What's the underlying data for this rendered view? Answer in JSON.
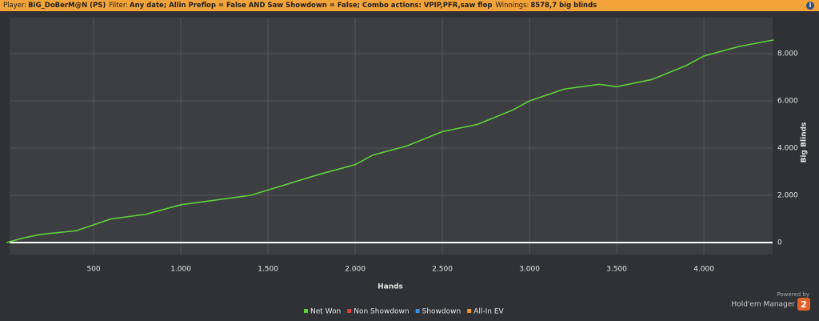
{
  "header": [
    {
      "label": "Player:",
      "value": "BiG_DoBerM@N (PS)"
    },
    {
      "label": "Filter:",
      "value": "Any date; Allin Preflop = False AND Saw Showdown = False; Combo actions: VPIP,PFR,saw flop"
    },
    {
      "label": "Winnings:",
      "value": "8578,7 big blinds"
    }
  ],
  "chart_data": {
    "type": "line",
    "x_label": "Hands",
    "y_label": "Big Blinds",
    "x": [
      0,
      100,
      200,
      400,
      600,
      800,
      1000,
      1200,
      1400,
      1600,
      1800,
      2000,
      2100,
      2300,
      2500,
      2700,
      2900,
      3000,
      3200,
      3400,
      3500,
      3700,
      3900,
      4000,
      4200,
      4400
    ],
    "series": [
      {
        "name": "Net Won",
        "color": "#5fd33a",
        "values": [
          0,
          200,
          350,
          500,
          1000,
          1200,
          1600,
          1800,
          2000,
          2450,
          2900,
          3300,
          3700,
          4100,
          4700,
          5000,
          5600,
          6000,
          6500,
          6700,
          6600,
          6900,
          7500,
          7900,
          8300,
          8580
        ]
      }
    ],
    "legend": [
      {
        "name": "Net Won",
        "color": "#5fd33a"
      },
      {
        "name": "Non Showdown",
        "color": "#e0403a"
      },
      {
        "name": "Showdown",
        "color": "#3a8ee0"
      },
      {
        "name": "All-In EV",
        "color": "#f09a30"
      }
    ],
    "xlim": [
      18,
      4394
    ],
    "ylim": [
      -508,
      9525
    ],
    "xticks": [
      500,
      {
        "value": 1000,
        "label": "1.000"
      },
      {
        "value": 1500,
        "label": "1.500"
      },
      {
        "value": 2000,
        "label": "2.000"
      },
      {
        "value": 2500,
        "label": "2.500"
      },
      {
        "value": 3000,
        "label": "3.000"
      },
      {
        "value": 3500,
        "label": "3.500"
      },
      {
        "value": 4000,
        "label": "4.000"
      }
    ],
    "yticks": [
      0,
      {
        "value": 2000,
        "label": "2.000"
      },
      {
        "value": 4000,
        "label": "4.000"
      },
      {
        "value": 6000,
        "label": "6.000"
      },
      {
        "value": 8000,
        "label": "8.000"
      }
    ],
    "grid": true
  },
  "branding": {
    "powered": "Powered by",
    "product": "Hold'em Manager",
    "badge": "2"
  }
}
